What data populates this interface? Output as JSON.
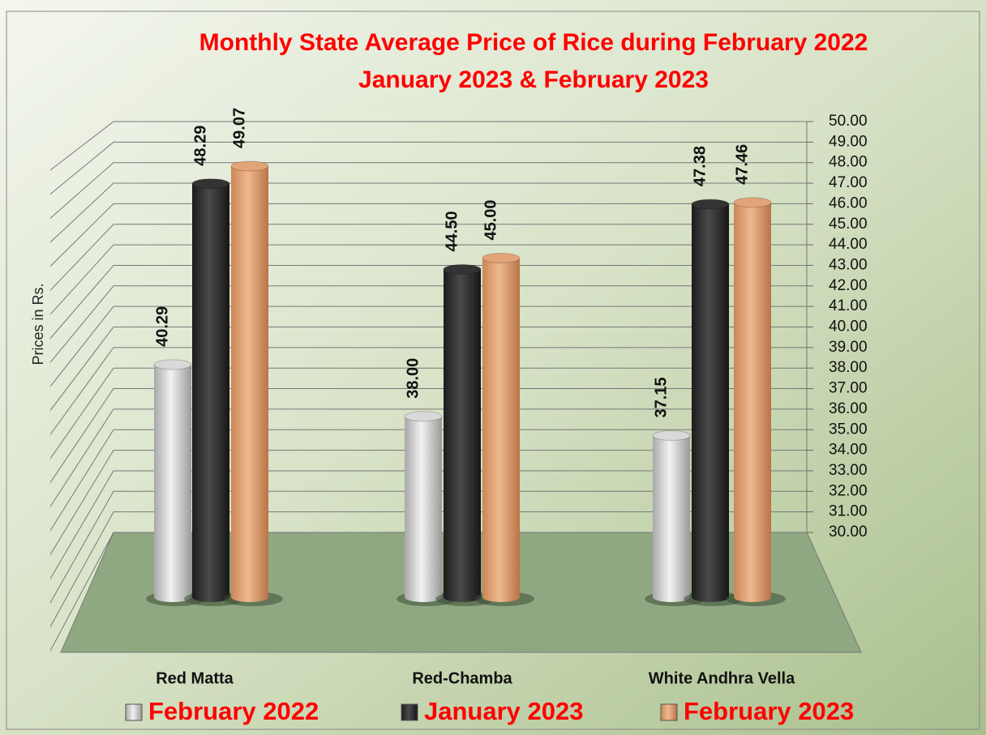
{
  "chart_data": {
    "type": "bar3d",
    "title": "Monthly State Average Price of Rice during  February 2022",
    "subtitle": "January  2023  &  February  2023",
    "y_label": "Prices in Rs.",
    "categories": [
      "Red Matta",
      "Red-Chamba",
      "White Andhra Vella"
    ],
    "series": [
      {
        "name": "February 2022",
        "color": "#d9d9d9",
        "values": [
          40.29,
          38,
          37.15
        ],
        "value_labels": [
          "40.29",
          "38.00",
          "37.15"
        ]
      },
      {
        "name": "January 2023",
        "color": "#333333",
        "values": [
          48.29,
          44.5,
          47.38
        ],
        "value_labels": [
          "48.29",
          "44.50",
          "47.38"
        ]
      },
      {
        "name": "February 2023",
        "color": "#e3a477",
        "values": [
          49.07,
          45,
          47.46
        ],
        "value_labels": [
          "49.07",
          "45.00",
          "47.46"
        ]
      }
    ],
    "ylim": [
      30,
      50
    ],
    "yticks": [
      {
        "value": 30,
        "label": "30.00"
      },
      {
        "value": 31,
        "label": "31.00"
      },
      {
        "value": 32,
        "label": "32.00"
      },
      {
        "value": 33,
        "label": "33.00"
      },
      {
        "value": 34,
        "label": "34.00"
      },
      {
        "value": 35,
        "label": "35.00"
      },
      {
        "value": 36,
        "label": "36.00"
      },
      {
        "value": 37,
        "label": "37.00"
      },
      {
        "value": 38,
        "label": "38.00"
      },
      {
        "value": 39,
        "label": "39.00"
      },
      {
        "value": 40,
        "label": "40.00"
      },
      {
        "value": 41,
        "label": "41.00"
      },
      {
        "value": 42,
        "label": "42.00"
      },
      {
        "value": 43,
        "label": "43.00"
      },
      {
        "value": 44,
        "label": "44.00"
      },
      {
        "value": 45,
        "label": "45.00"
      },
      {
        "value": 46,
        "label": "46.00"
      },
      {
        "value": 47,
        "label": "47.00"
      },
      {
        "value": 48,
        "label": "48.00"
      },
      {
        "value": 49,
        "label": "49.00"
      },
      {
        "value": 50,
        "label": "50.00"
      }
    ],
    "grid": true
  }
}
